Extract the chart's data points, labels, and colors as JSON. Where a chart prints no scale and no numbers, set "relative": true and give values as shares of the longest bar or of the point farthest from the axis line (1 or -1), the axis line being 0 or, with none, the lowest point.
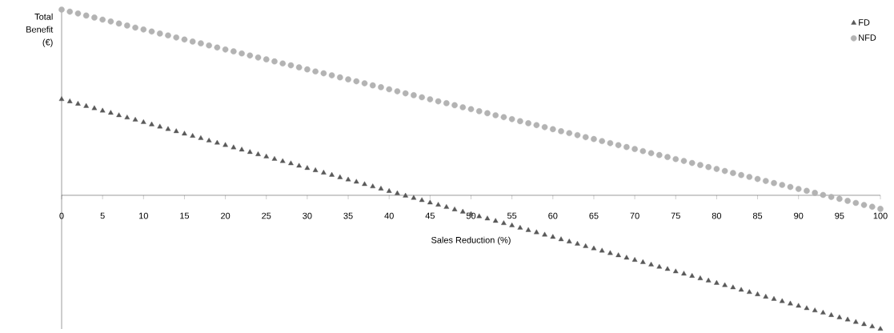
{
  "chart_data": {
    "type": "scatter",
    "relative": true,
    "xlabel": "Sales Reduction (%)",
    "ylabel": "Total Benefit (€)",
    "x": [
      0,
      1,
      2,
      3,
      4,
      5,
      6,
      7,
      8,
      9,
      10,
      11,
      12,
      13,
      14,
      15,
      16,
      17,
      18,
      19,
      20,
      21,
      22,
      23,
      24,
      25,
      26,
      27,
      28,
      29,
      30,
      31,
      32,
      33,
      34,
      35,
      36,
      37,
      38,
      39,
      40,
      41,
      42,
      43,
      44,
      45,
      46,
      47,
      48,
      49,
      50,
      51,
      52,
      53,
      54,
      55,
      56,
      57,
      58,
      59,
      60,
      61,
      62,
      63,
      64,
      65,
      66,
      67,
      68,
      69,
      70,
      71,
      72,
      73,
      74,
      75,
      76,
      77,
      78,
      79,
      80,
      81,
      82,
      83,
      84,
      85,
      86,
      87,
      88,
      89,
      90,
      91,
      92,
      93,
      94,
      95,
      96,
      97,
      98,
      99,
      100
    ],
    "xlim": [
      0,
      100
    ],
    "xticks": [
      0,
      5,
      10,
      15,
      20,
      25,
      30,
      35,
      40,
      45,
      50,
      55,
      60,
      65,
      70,
      75,
      80,
      85,
      90,
      95,
      100
    ],
    "legend": "top right",
    "grid": false,
    "series": [
      {
        "name": "FD",
        "color": "#595959",
        "marker": "triangle",
        "values": [
          0.517,
          0.505,
          0.492,
          0.48,
          0.468,
          0.455,
          0.443,
          0.43,
          0.418,
          0.406,
          0.393,
          0.381,
          0.369,
          0.356,
          0.344,
          0.331,
          0.319,
          0.307,
          0.294,
          0.282,
          0.27,
          0.257,
          0.245,
          0.232,
          0.22,
          0.208,
          0.195,
          0.183,
          0.171,
          0.158,
          0.146,
          0.134,
          0.121,
          0.109,
          0.096,
          0.084,
          0.072,
          0.059,
          0.047,
          0.035,
          0.022,
          0.01,
          -0.003,
          -0.015,
          -0.027,
          -0.04,
          -0.052,
          -0.064,
          -0.077,
          -0.089,
          -0.102,
          -0.114,
          -0.126,
          -0.139,
          -0.151,
          -0.163,
          -0.176,
          -0.188,
          -0.2,
          -0.213,
          -0.225,
          -0.238,
          -0.25,
          -0.262,
          -0.275,
          -0.287,
          -0.299,
          -0.312,
          -0.324,
          -0.337,
          -0.349,
          -0.361,
          -0.374,
          -0.386,
          -0.398,
          -0.411,
          -0.423,
          -0.435,
          -0.448,
          -0.46,
          -0.473,
          -0.485,
          -0.497,
          -0.51,
          -0.522,
          -0.534,
          -0.547,
          -0.559,
          -0.571,
          -0.584,
          -0.596,
          -0.609,
          -0.621,
          -0.633,
          -0.646,
          -0.658,
          -0.67,
          -0.683,
          -0.695,
          -0.707,
          -0.72
        ]
      },
      {
        "name": "NFD",
        "color": "#b3b3b3",
        "marker": "circle",
        "values": [
          1.0,
          0.989,
          0.979,
          0.968,
          0.957,
          0.946,
          0.936,
          0.925,
          0.914,
          0.903,
          0.893,
          0.882,
          0.871,
          0.861,
          0.85,
          0.839,
          0.828,
          0.818,
          0.807,
          0.796,
          0.785,
          0.775,
          0.764,
          0.753,
          0.742,
          0.732,
          0.721,
          0.71,
          0.7,
          0.689,
          0.678,
          0.667,
          0.657,
          0.646,
          0.635,
          0.624,
          0.614,
          0.603,
          0.592,
          0.582,
          0.571,
          0.56,
          0.549,
          0.539,
          0.528,
          0.517,
          0.506,
          0.496,
          0.485,
          0.474,
          0.464,
          0.453,
          0.442,
          0.431,
          0.421,
          0.41,
          0.399,
          0.388,
          0.378,
          0.367,
          0.356,
          0.345,
          0.335,
          0.324,
          0.313,
          0.303,
          0.292,
          0.281,
          0.27,
          0.26,
          0.249,
          0.238,
          0.227,
          0.217,
          0.206,
          0.195,
          0.185,
          0.174,
          0.163,
          0.152,
          0.142,
          0.131,
          0.12,
          0.109,
          0.099,
          0.088,
          0.077,
          0.066,
          0.056,
          0.045,
          0.034,
          0.024,
          0.013,
          0.002,
          -0.009,
          -0.019,
          -0.03,
          -0.041,
          -0.052,
          -0.062,
          -0.073
        ]
      }
    ]
  }
}
